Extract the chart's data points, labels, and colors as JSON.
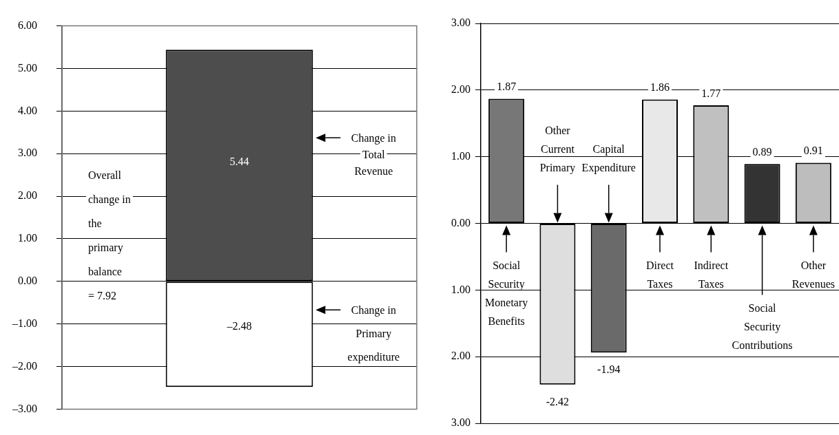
{
  "chart_data": [
    {
      "type": "bar",
      "categories": [
        null
      ],
      "stacked": true,
      "series": [
        {
          "name": "Change in Total Revenue",
          "color": "#4d4d4d",
          "values": [
            5.44
          ],
          "value_labels": [
            "5.44"
          ]
        },
        {
          "name": "Change in Primary expenditure",
          "color": "#ffffff",
          "values": [
            -2.48
          ],
          "value_labels": [
            "–2.48"
          ]
        }
      ],
      "ylim": [
        -3,
        6
      ],
      "yticks": [
        {
          "value": 6,
          "label": "6.00"
        },
        {
          "value": 5,
          "label": "5.00"
        },
        {
          "value": 4,
          "label": "4.00"
        },
        {
          "value": 3,
          "label": "3.00"
        },
        {
          "value": 2,
          "label": "2.00"
        },
        {
          "value": 1,
          "label": "1.00"
        },
        {
          "value": 0,
          "label": "0.00"
        },
        {
          "value": -1,
          "label": "–1.00"
        },
        {
          "value": -2,
          "label": "–2.00"
        },
        {
          "value": -3,
          "label": "–3.00"
        }
      ],
      "grid": "y",
      "annotations": [
        "Overall change in the primary balance = 7.92"
      ]
    },
    {
      "type": "bar",
      "categories": [
        "Social Security Monetary Benefits",
        "Other Current Primary",
        "Capital Expenditure",
        "Direct Taxes",
        "Indirect Taxes",
        "Social Security Contributions",
        "Other Revenues"
      ],
      "values": [
        1.87,
        -2.42,
        -1.94,
        1.86,
        1.77,
        0.89,
        0.91
      ],
      "colors": [
        "#777777",
        "#dedede",
        "#6a6a6a",
        "#e8e8e8",
        "#c0c0c0",
        "#333333",
        "#bdbdbd"
      ],
      "data_labels": true,
      "ylim": [
        -3,
        3
      ],
      "yticks": [
        {
          "value": 3,
          "label": "3.00"
        },
        {
          "value": 2,
          "label": "2.00"
        },
        {
          "value": 1,
          "label": "1.00"
        },
        {
          "value": 0,
          "label": "0.00"
        },
        {
          "value": -1,
          "label": "1.00"
        },
        {
          "value": -2,
          "label": "2.00"
        },
        {
          "value": -3,
          "label": "3.00"
        }
      ],
      "grid": "y"
    }
  ]
}
